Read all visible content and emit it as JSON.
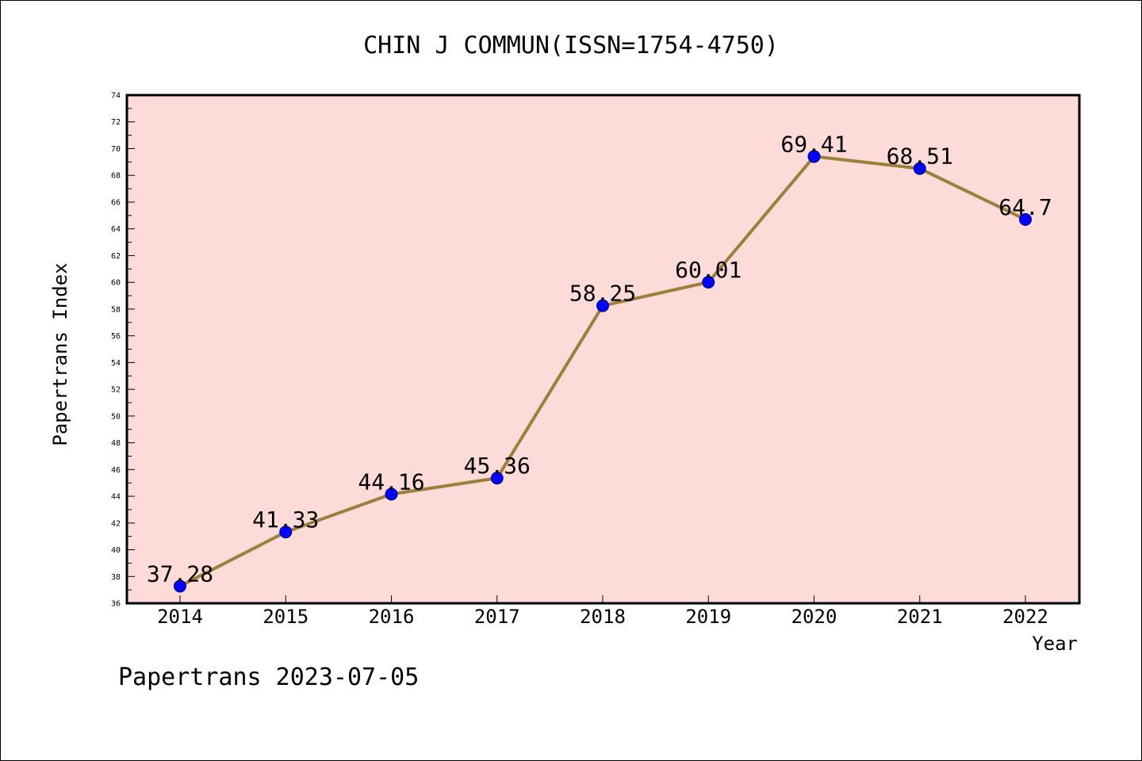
{
  "chart_data": {
    "type": "line",
    "title": "CHIN J COMMUN(ISSN=1754-4750)",
    "xlabel": "Year",
    "ylabel": "Papertrans Index",
    "categories": [
      "2014",
      "2015",
      "2016",
      "2017",
      "2018",
      "2019",
      "2020",
      "2021",
      "2022"
    ],
    "values": [
      37.28,
      41.33,
      44.16,
      45.36,
      58.25,
      60.01,
      69.41,
      68.51,
      64.7
    ],
    "data_labels": [
      "37.28",
      "41.33",
      "44.16",
      "45.36",
      "58.25",
      "60.01",
      "69.41",
      "68.51",
      "64.7"
    ],
    "ylim": [
      36,
      74
    ],
    "yticks": [
      "36",
      "38",
      "40",
      "42",
      "44",
      "46",
      "48",
      "50",
      "52",
      "54",
      "56",
      "58",
      "60",
      "62",
      "64",
      "66",
      "68",
      "70",
      "72",
      "74"
    ],
    "grid": false,
    "legend": "none",
    "colors": {
      "plot_background": "#fddbd8",
      "line": "#9b7f3a",
      "marker": "#0000ff"
    }
  },
  "footer": "Papertrans 2023-07-05"
}
